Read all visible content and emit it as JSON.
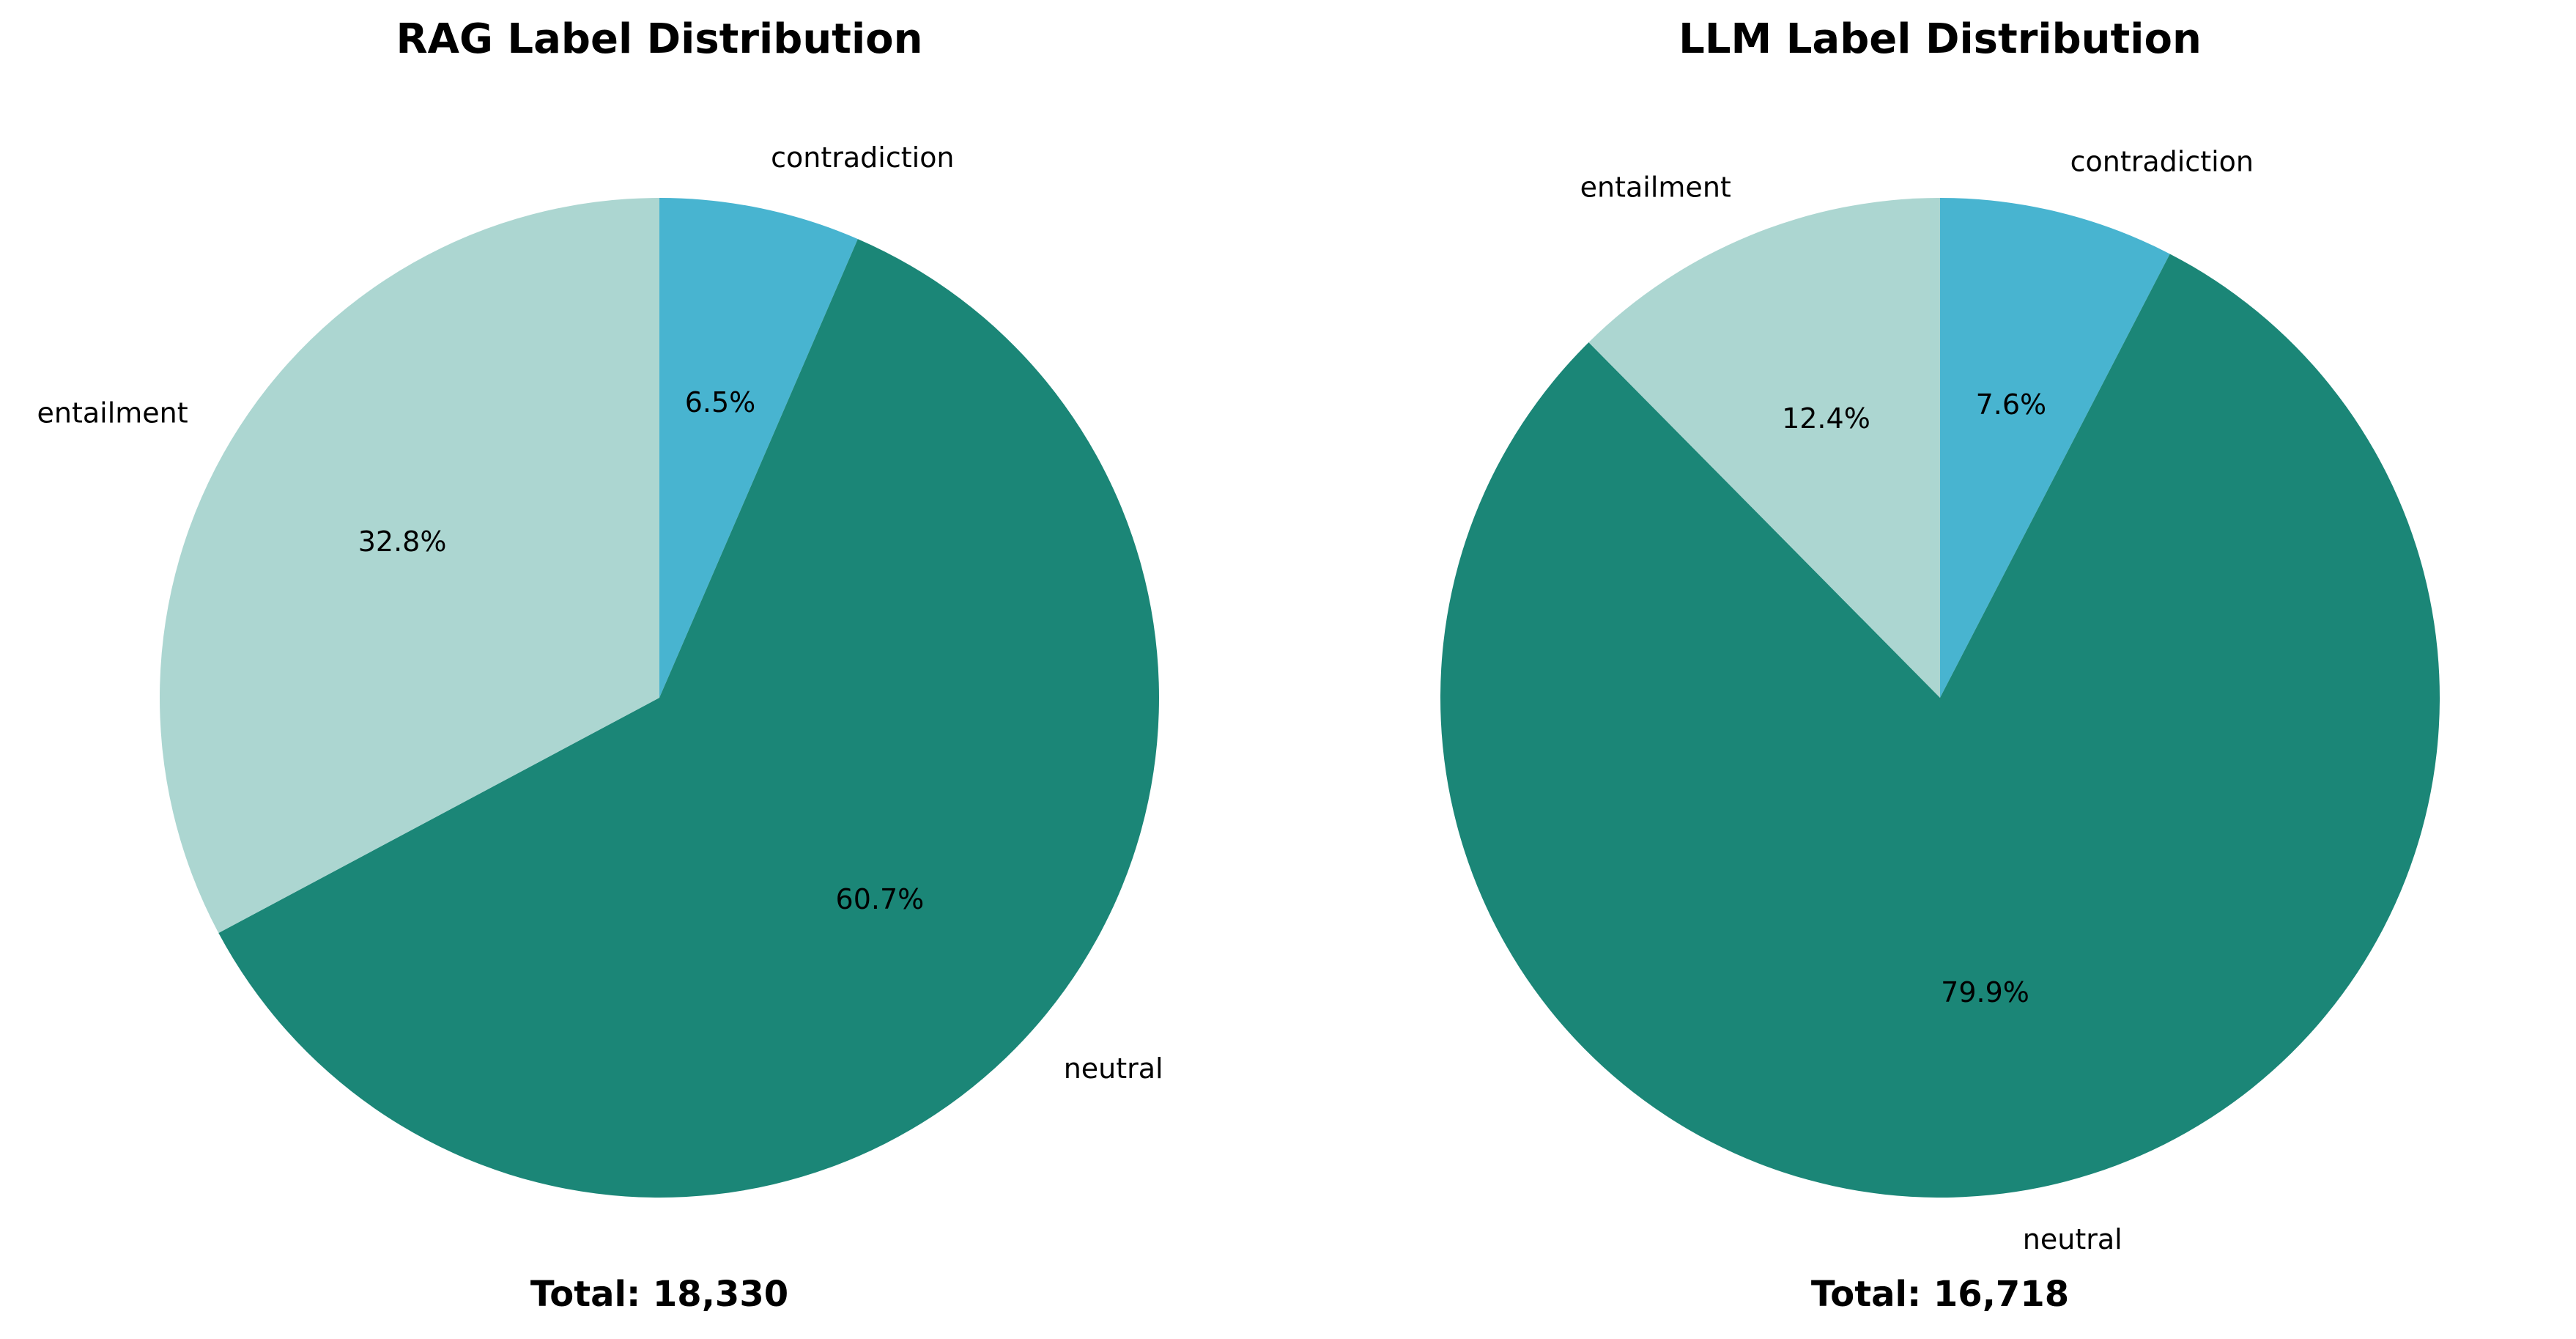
{
  "colors": {
    "entailment": "#acd6d1",
    "neutral": "#1b8677",
    "contradiction": "#48b4d0"
  },
  "chart_data": [
    {
      "type": "pie",
      "title": "RAG Label Distribution",
      "total_label": "Total: 18,330",
      "start_angle_deg": 90,
      "direction": "clockwise",
      "slices": [
        {
          "label": "contradiction",
          "value": 6.5,
          "pct_text": "6.5%"
        },
        {
          "label": "neutral",
          "value": 60.7,
          "pct_text": "60.7%"
        },
        {
          "label": "entailment",
          "value": 32.8,
          "pct_text": "32.8%"
        }
      ]
    },
    {
      "type": "pie",
      "title": "LLM Label Distribution",
      "total_label": "Total: 16,718",
      "start_angle_deg": 90,
      "direction": "clockwise",
      "slices": [
        {
          "label": "contradiction",
          "value": 7.6,
          "pct_text": "7.6%"
        },
        {
          "label": "neutral",
          "value": 79.9,
          "pct_text": "79.9%"
        },
        {
          "label": "entailment",
          "value": 12.4,
          "pct_text": "12.4%"
        }
      ]
    }
  ]
}
